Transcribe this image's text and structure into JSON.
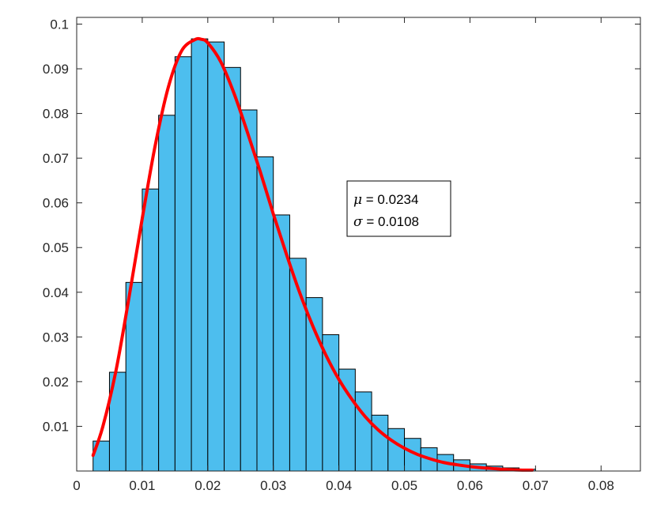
{
  "chart_data": {
    "type": "bar",
    "title": "",
    "xlabel": "",
    "ylabel": "",
    "xlim": [
      0,
      0.086
    ],
    "ylim": [
      0,
      0.1015
    ],
    "grid": false,
    "x_ticks": [
      0,
      0.01,
      0.02,
      0.03,
      0.04,
      0.05,
      0.06,
      0.07,
      0.08
    ],
    "x_tick_labels": [
      "0",
      "0.01",
      "0.02",
      "0.03",
      "0.04",
      "0.05",
      "0.06",
      "0.07",
      "0.08"
    ],
    "y_ticks": [
      0.01,
      0.02,
      0.03,
      0.04,
      0.05,
      0.06,
      0.07,
      0.08,
      0.09,
      0.1
    ],
    "y_tick_labels": [
      "0.01",
      "0.02",
      "0.03",
      "0.04",
      "0.05",
      "0.06",
      "0.07",
      "0.08",
      "0.09",
      "0.1"
    ],
    "bins": {
      "edges": [
        0.0025,
        0.005,
        0.0075,
        0.01,
        0.0125,
        0.015,
        0.0175,
        0.02,
        0.0225,
        0.025,
        0.0275,
        0.03,
        0.0325,
        0.035,
        0.0375,
        0.04,
        0.0425,
        0.045,
        0.0475,
        0.05,
        0.0525,
        0.055,
        0.0575,
        0.06,
        0.0625,
        0.065,
        0.0675,
        0.07
      ],
      "values": [
        0.0067,
        0.0221,
        0.0422,
        0.0631,
        0.0796,
        0.0927,
        0.0967,
        0.096,
        0.0903,
        0.0808,
        0.0703,
        0.0573,
        0.0476,
        0.0388,
        0.0305,
        0.0228,
        0.0177,
        0.0125,
        0.0095,
        0.0073,
        0.0052,
        0.0037,
        0.0025,
        0.0016,
        0.0011,
        0.0007,
        0.0004
      ],
      "fill_color": "#4DBEEE",
      "edge_color": "#000000"
    },
    "fit_curve": {
      "color": "#FF0000",
      "x": [
        0.0025,
        0.004,
        0.006,
        0.008,
        0.01,
        0.012,
        0.014,
        0.016,
        0.018,
        0.019,
        0.02,
        0.022,
        0.024,
        0.026,
        0.028,
        0.03,
        0.032,
        0.034,
        0.036,
        0.038,
        0.04,
        0.042,
        0.044,
        0.046,
        0.048,
        0.05,
        0.052,
        0.054,
        0.056,
        0.058,
        0.06,
        0.062,
        0.064,
        0.066,
        0.068,
        0.0695
      ],
      "y": [
        0.0035,
        0.01,
        0.0225,
        0.039,
        0.0565,
        0.073,
        0.086,
        0.094,
        0.0965,
        0.0966,
        0.0958,
        0.0915,
        0.0845,
        0.076,
        0.067,
        0.0575,
        0.0485,
        0.04,
        0.0325,
        0.026,
        0.0205,
        0.016,
        0.0122,
        0.0092,
        0.0069,
        0.0051,
        0.0037,
        0.0027,
        0.0019,
        0.0014,
        0.001,
        0.0007,
        0.0005,
        0.0003,
        0.0002,
        0.0002
      ]
    },
    "annotation": {
      "mu_symbol": "μ",
      "mu_text": " = 0.0234",
      "sigma_symbol": "σ",
      "sigma_text": " = 0.0108"
    }
  }
}
